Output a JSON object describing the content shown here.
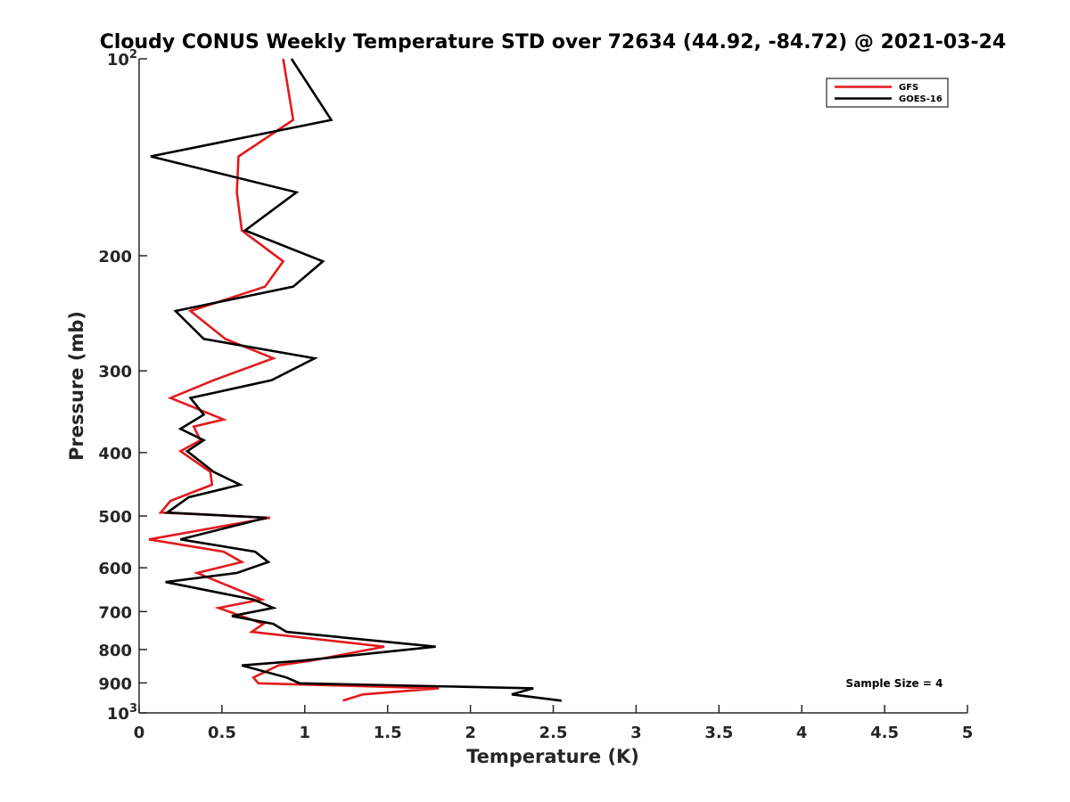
{
  "chart_data": {
    "type": "line",
    "title": "Cloudy CONUS Weekly Temperature STD over 72634 (44.92, -84.72) @ 2021-03-24",
    "xlabel": "Temperature (K)",
    "ylabel": "Pressure (mb)",
    "xlim": [
      0,
      5
    ],
    "ylim": [
      1000,
      100
    ],
    "yscale": "log",
    "x_ticks": [
      "0",
      "0.5",
      "1",
      "1.5",
      "2",
      "2.5",
      "3",
      "3.5",
      "4",
      "4.5",
      "5"
    ],
    "y_ticks": [
      {
        "value": 100,
        "base": "10",
        "exp": "2"
      },
      {
        "value": 200,
        "base": "200",
        "exp": ""
      },
      {
        "value": 300,
        "base": "300",
        "exp": ""
      },
      {
        "value": 400,
        "base": "400",
        "exp": ""
      },
      {
        "value": 500,
        "base": "500",
        "exp": ""
      },
      {
        "value": 600,
        "base": "600",
        "exp": ""
      },
      {
        "value": 700,
        "base": "700",
        "exp": ""
      },
      {
        "value": 800,
        "base": "800",
        "exp": ""
      },
      {
        "value": 900,
        "base": "900",
        "exp": ""
      },
      {
        "value": 1000,
        "base": "10",
        "exp": "3"
      }
    ],
    "grid": false,
    "legend_position": "top-right",
    "annotation": "Sample Size = 4",
    "series": [
      {
        "name": "GFS",
        "color": "#e31a1c",
        "points": [
          [
            0.87,
            100
          ],
          [
            0.93,
            124
          ],
          [
            0.6,
            141
          ],
          [
            0.59,
            160
          ],
          [
            0.62,
            183
          ],
          [
            0.87,
            204
          ],
          [
            0.76,
            223
          ],
          [
            0.31,
            243
          ],
          [
            0.52,
            268
          ],
          [
            0.81,
            287
          ],
          [
            0.45,
            310
          ],
          [
            0.19,
            330
          ],
          [
            0.51,
            356
          ],
          [
            0.33,
            365
          ],
          [
            0.37,
            383
          ],
          [
            0.25,
            398
          ],
          [
            0.43,
            428
          ],
          [
            0.44,
            448
          ],
          [
            0.19,
            474
          ],
          [
            0.13,
            494
          ],
          [
            0.79,
            503
          ],
          [
            0.06,
            543
          ],
          [
            0.51,
            567
          ],
          [
            0.62,
            588
          ],
          [
            0.35,
            611
          ],
          [
            0.74,
            671
          ],
          [
            0.48,
            691
          ],
          [
            0.75,
            731
          ],
          [
            0.68,
            752
          ],
          [
            1.48,
            792
          ],
          [
            1.04,
            832
          ],
          [
            0.84,
            846
          ],
          [
            0.69,
            883
          ],
          [
            0.72,
            901
          ],
          [
            1.81,
            917
          ],
          [
            1.35,
            937
          ],
          [
            1.23,
            958
          ]
        ]
      },
      {
        "name": "GOES-16",
        "color": "#000000",
        "points": [
          [
            0.92,
            100
          ],
          [
            1.16,
            124
          ],
          [
            0.07,
            141
          ],
          [
            0.95,
            160
          ],
          [
            0.64,
            183
          ],
          [
            1.11,
            204
          ],
          [
            0.93,
            223
          ],
          [
            0.22,
            243
          ],
          [
            0.39,
            268
          ],
          [
            1.06,
            287
          ],
          [
            0.8,
            310
          ],
          [
            0.31,
            330
          ],
          [
            0.39,
            350
          ],
          [
            0.25,
            368
          ],
          [
            0.39,
            383
          ],
          [
            0.29,
            398
          ],
          [
            0.45,
            428
          ],
          [
            0.61,
            448
          ],
          [
            0.3,
            468
          ],
          [
            0.17,
            494
          ],
          [
            0.77,
            503
          ],
          [
            0.25,
            543
          ],
          [
            0.7,
            567
          ],
          [
            0.78,
            588
          ],
          [
            0.59,
            611
          ],
          [
            0.16,
            631
          ],
          [
            0.69,
            671
          ],
          [
            0.81,
            691
          ],
          [
            0.56,
            711
          ],
          [
            0.81,
            731
          ],
          [
            0.89,
            752
          ],
          [
            1.79,
            792
          ],
          [
            0.98,
            832
          ],
          [
            0.62,
            846
          ],
          [
            0.89,
            883
          ],
          [
            0.97,
            901
          ],
          [
            2.38,
            917
          ],
          [
            2.25,
            937
          ],
          [
            2.55,
            958
          ]
        ]
      }
    ]
  }
}
